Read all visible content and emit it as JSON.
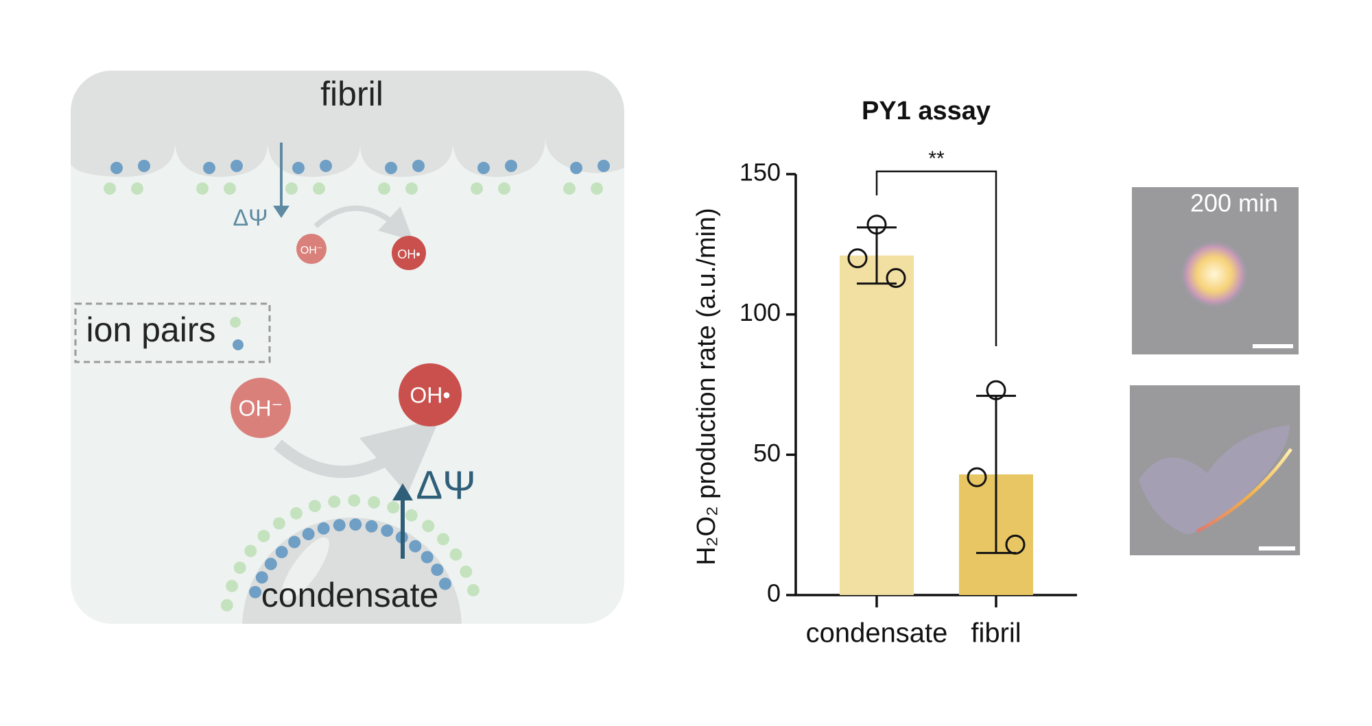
{
  "diagram": {
    "fibril_label": "fibril",
    "delta_psi_small": "ΔΨ",
    "oh_small": "OH⁻",
    "oh_radical_small": "OH•",
    "legend_label": "ion pairs",
    "oh": "OH⁻",
    "oh_radical": "OH•",
    "delta_psi": "ΔΨ",
    "condensate_label": "condensate"
  },
  "chart_data": {
    "type": "bar",
    "title": "PY1 assay",
    "y_label": "H₂O₂ production rate (a.u./min)",
    "categories": [
      "condensate",
      "fibril"
    ],
    "values": [
      121,
      43
    ],
    "errors": [
      10,
      28
    ],
    "points": [
      [
        132,
        120,
        113
      ],
      [
        73,
        42,
        18
      ]
    ],
    "colors": [
      "#f2dfa2",
      "#e8c663"
    ],
    "annotation": "**",
    "ylim": [
      0,
      150
    ],
    "yticks": [
      0,
      50,
      100,
      150
    ]
  },
  "micrographs": {
    "time_label": "200 min"
  }
}
